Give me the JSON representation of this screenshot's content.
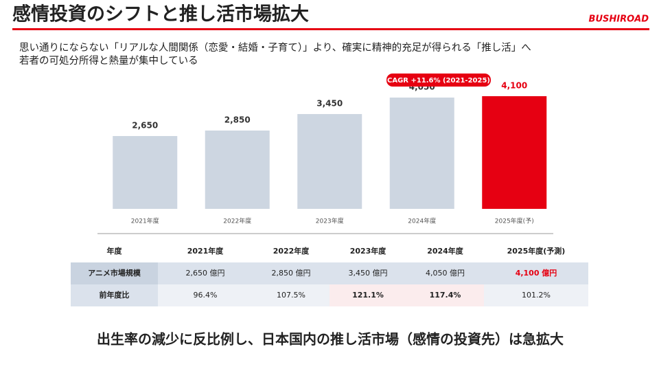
{
  "header": {
    "title": "感情投資のシフトと推し活市場拡大",
    "logo": "BUSHIROAD"
  },
  "subtitle": [
    "思い通りにならない「リアルな人間関係（恋愛・結婚・子育て）」より、確実に精神的充足が得られる「推し活」へ",
    "若者の可処分所得と熱量が集中している"
  ],
  "chart_data": {
    "type": "bar",
    "categories": [
      "2021年度",
      "2022年度",
      "2023年度",
      "2024年度",
      "2025年度(予)"
    ],
    "values": [
      2650,
      2850,
      3450,
      4050,
      4100
    ],
    "value_labels": [
      "2,650",
      "2,850",
      "3,450",
      "4,050",
      "4,100"
    ],
    "colors": [
      "#cdd6e1",
      "#cdd6e1",
      "#cdd6e1",
      "#cdd6e1",
      "#e60012"
    ],
    "label_colors": [
      "#333333",
      "#333333",
      "#333333",
      "#333333",
      "#e60012"
    ],
    "annotation": "CAGR +11.6% (2021-2025)"
  },
  "table": {
    "header": [
      "年度",
      "2021年度",
      "2022年度",
      "2023年度",
      "2024年度",
      "2025年度(予測)"
    ],
    "rows": [
      [
        "アニメ市場規模",
        "2,650 億円",
        "2,850 億円",
        "3,450 億円",
        "4,050 億円",
        "4,100 億円"
      ],
      [
        "前年度比",
        "96.4%",
        "107.5%",
        "121.1%",
        "117.4%",
        "101.2%"
      ]
    ]
  },
  "footer": "出生率の減少に反比例し、日本国内の推し活市場（感情の投資先）は急拡大"
}
